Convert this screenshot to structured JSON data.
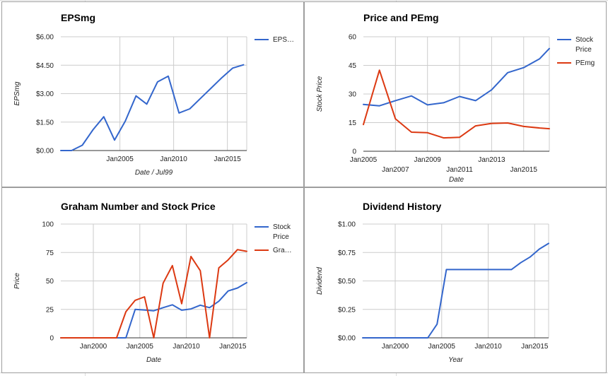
{
  "colors": {
    "blue": "#3366cc",
    "red": "#dc3912",
    "grid": "#cccccc",
    "axis": "#333333"
  },
  "chart_data": [
    {
      "id": "eps",
      "type": "line",
      "title": "EPSmg",
      "xlabel": "Date / Jul99",
      "ylabel": "EPSmg",
      "xlim": [
        1999.5,
        2016.8
      ],
      "ylim": [
        0,
        6
      ],
      "yticks": [
        0,
        1.5,
        3,
        4.5,
        6
      ],
      "ytick_labels": [
        "$0.00",
        "$1.50",
        "$3.00",
        "$4.50",
        "$6.00"
      ],
      "xticks": [
        {
          "x": 2005,
          "label": "Jan2005",
          "row": 0
        },
        {
          "x": 2010,
          "label": "Jan2010",
          "row": 0
        },
        {
          "x": 2015,
          "label": "Jan2015",
          "row": 0
        }
      ],
      "vgrid": [
        2005,
        2010,
        2015
      ],
      "legend": {
        "position": "right",
        "entries": [
          {
            "label": "EPS…",
            "color": "#3366cc"
          }
        ]
      },
      "series": [
        {
          "name": "EPS…",
          "color": "#3366cc",
          "x": [
            1999.5,
            2000.5,
            2001.5,
            2002.5,
            2003.5,
            2004.5,
            2005.5,
            2006.5,
            2007.5,
            2008.5,
            2009.5,
            2010.5,
            2011.5,
            2012.5,
            2013.5,
            2014.5,
            2015.5,
            2016.5
          ],
          "y": [
            0,
            0,
            0.28,
            1.1,
            1.78,
            0.55,
            1.55,
            2.88,
            2.45,
            3.62,
            3.92,
            1.98,
            2.2,
            2.75,
            3.3,
            3.85,
            4.35,
            4.52
          ]
        }
      ]
    },
    {
      "id": "price_pe",
      "type": "line",
      "title": "Price and PEmg",
      "xlabel": "Date",
      "ylabel": "Stock Price",
      "xlim": [
        2005,
        2016.6
      ],
      "ylim": [
        0,
        60
      ],
      "yticks": [
        0,
        15,
        30,
        45,
        60
      ],
      "ytick_labels": [
        "0",
        "15",
        "30",
        "45",
        "60"
      ],
      "xticks": [
        {
          "x": 2005,
          "label": "Jan2005",
          "row": 0
        },
        {
          "x": 2007,
          "label": "Jan2007",
          "row": 1
        },
        {
          "x": 2009,
          "label": "Jan2009",
          "row": 0
        },
        {
          "x": 2011,
          "label": "Jan2011",
          "row": 1
        },
        {
          "x": 2013,
          "label": "Jan2013",
          "row": 0
        },
        {
          "x": 2015,
          "label": "Jan2015",
          "row": 1
        }
      ],
      "vgrid": [
        2007,
        2009,
        2011,
        2013,
        2015
      ],
      "legend": {
        "position": "right",
        "entries": [
          {
            "label": "Stock",
            "label2": "Price",
            "color": "#3366cc"
          },
          {
            "label": "PEmg",
            "color": "#dc3912"
          }
        ]
      },
      "series": [
        {
          "name": "Stock Price",
          "color": "#3366cc",
          "x": [
            2005,
            2006,
            2007,
            2008,
            2009,
            2010,
            2011,
            2012,
            2013,
            2014,
            2015,
            2016,
            2016.6
          ],
          "y": [
            24.5,
            23.8,
            26.5,
            29.0,
            24.3,
            25.4,
            28.7,
            26.5,
            32.2,
            41.2,
            43.8,
            48.5,
            53.8
          ]
        },
        {
          "name": "PEmg",
          "color": "#dc3912",
          "x": [
            2005,
            2006,
            2007,
            2008,
            2009,
            2010,
            2011,
            2012,
            2013,
            2014,
            2015,
            2016,
            2016.6
          ],
          "y": [
            14,
            42.5,
            17,
            10,
            9.7,
            7,
            7.3,
            13.3,
            14.6,
            14.8,
            13,
            12.2,
            11.8
          ]
        }
      ]
    },
    {
      "id": "graham",
      "type": "line",
      "title": "Graham Number and Stock Price",
      "xlabel": "Date",
      "ylabel": "Price",
      "xlim": [
        1996.5,
        2016.5
      ],
      "ylim": [
        0,
        100
      ],
      "yticks": [
        0,
        25,
        50,
        75,
        100
      ],
      "ytick_labels": [
        "0",
        "25",
        "50",
        "75",
        "100"
      ],
      "xticks": [
        {
          "x": 2000,
          "label": "Jan2000",
          "row": 0
        },
        {
          "x": 2005,
          "label": "Jan2005",
          "row": 0
        },
        {
          "x": 2010,
          "label": "Jan2010",
          "row": 0
        },
        {
          "x": 2015,
          "label": "Jan2015",
          "row": 0
        }
      ],
      "vgrid": [
        2000,
        2005,
        2010,
        2015
      ],
      "legend": {
        "position": "right",
        "entries": [
          {
            "label": "Stock",
            "label2": "Price",
            "color": "#3366cc"
          },
          {
            "label": "Gra…",
            "color": "#dc3912"
          }
        ]
      },
      "series": [
        {
          "name": "Stock Price",
          "color": "#3366cc",
          "x": [
            1996.5,
            2002.6,
            2003.5,
            2004.5,
            2005.5,
            2006.5,
            2007.5,
            2008.5,
            2009.5,
            2010.5,
            2011.5,
            2012.5,
            2013.5,
            2014.5,
            2015.5,
            2016.5
          ],
          "y": [
            0,
            0,
            0,
            25,
            24.5,
            23.8,
            26.5,
            29,
            24.3,
            25.4,
            28.7,
            26.5,
            32.2,
            41.2,
            43.8,
            48.5
          ]
        },
        {
          "name": "Gra…",
          "color": "#dc3912",
          "x": [
            1996.5,
            2001.5,
            2002.5,
            2003.5,
            2004.5,
            2005.5,
            2006.5,
            2007.5,
            2008.5,
            2009.5,
            2010.5,
            2011.5,
            2012.5,
            2013.5,
            2014.5,
            2015.5,
            2016.5
          ],
          "y": [
            0,
            0,
            0,
            23,
            33,
            36,
            0,
            48,
            63.5,
            30,
            71.5,
            59,
            0,
            61.5,
            68.5,
            77.5,
            76
          ]
        }
      ]
    },
    {
      "id": "dividend",
      "type": "line",
      "title": "Dividend History",
      "xlabel": "Year",
      "ylabel": "Dividend",
      "xlim": [
        1996.5,
        2016.5
      ],
      "ylim": [
        0,
        1
      ],
      "yticks": [
        0,
        0.25,
        0.5,
        0.75,
        1
      ],
      "ytick_labels": [
        "$0.00",
        "$0.25",
        "$0.50",
        "$0.75",
        "$1.00"
      ],
      "xticks": [
        {
          "x": 2000,
          "label": "Jan2000",
          "row": 0
        },
        {
          "x": 2005,
          "label": "Jan2005",
          "row": 0
        },
        {
          "x": 2010,
          "label": "Jan2010",
          "row": 0
        },
        {
          "x": 2015,
          "label": "Jan2015",
          "row": 0
        }
      ],
      "vgrid": [
        2000,
        2005,
        2010,
        2015
      ],
      "legend": null,
      "series": [
        {
          "name": "Dividend",
          "color": "#3366cc",
          "x": [
            1996.5,
            2003.5,
            2004.5,
            2005.5,
            2012.5,
            2013.5,
            2014.5,
            2015.5,
            2016.5
          ],
          "y": [
            0,
            0,
            0.12,
            0.6,
            0.6,
            0.66,
            0.71,
            0.78,
            0.83
          ]
        }
      ]
    }
  ]
}
